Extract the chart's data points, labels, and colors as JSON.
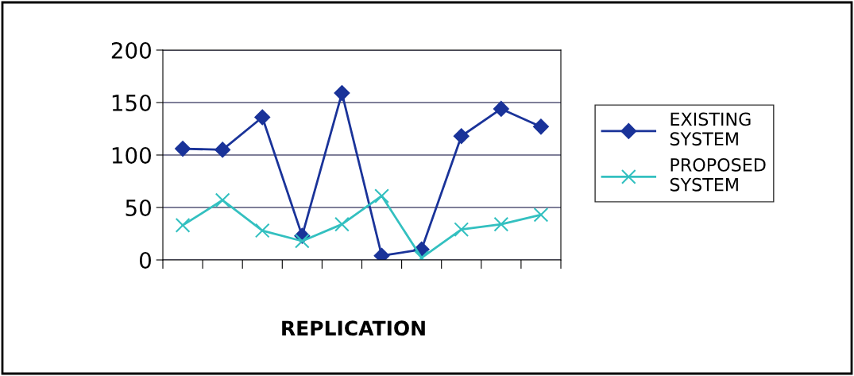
{
  "chart_data": {
    "type": "line",
    "xlabel": "REPLICATION",
    "categories": [
      null,
      null,
      null,
      null,
      null,
      null,
      null,
      null,
      null,
      null
    ],
    "series": [
      {
        "name": "EXISTING SYSTEM",
        "color": "#1a3399",
        "marker": "diamond",
        "values": [
          106,
          105,
          136,
          23,
          159,
          4,
          10,
          118,
          144,
          127
        ]
      },
      {
        "name": "PROPOSED SYSTEM",
        "color": "#33c0c0",
        "marker": "cross",
        "values": [
          33,
          57,
          28,
          18,
          34,
          61,
          2,
          29,
          34,
          43
        ]
      }
    ],
    "ylim": [
      0,
      200
    ],
    "yticks": [
      0,
      50,
      100,
      150,
      200
    ],
    "grid": "y",
    "legend": "right"
  }
}
